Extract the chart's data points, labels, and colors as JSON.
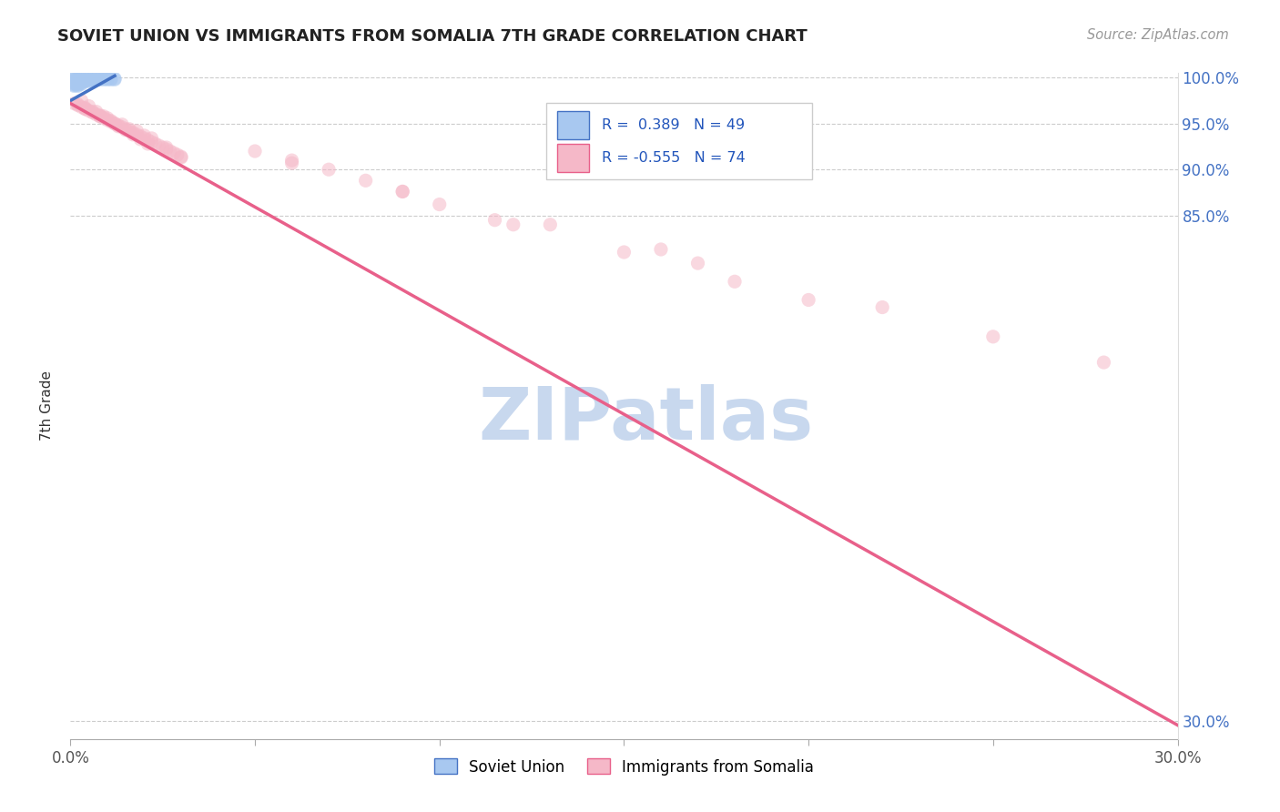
{
  "title": "SOVIET UNION VS IMMIGRANTS FROM SOMALIA 7TH GRADE CORRELATION CHART",
  "source": "Source: ZipAtlas.com",
  "ylabel": "7th Grade",
  "legend_entry1_label": "Soviet Union",
  "legend_entry2_label": "Immigrants from Somalia",
  "r1": 0.389,
  "n1": 49,
  "r2": -0.555,
  "n2": 74,
  "xlim": [
    0.0,
    0.3
  ],
  "ylim": [
    0.28,
    1.005
  ],
  "xticks": [
    0.0,
    0.05,
    0.1,
    0.15,
    0.2,
    0.25,
    0.3
  ],
  "xtick_labels": [
    "0.0%",
    "",
    "",
    "",
    "",
    "",
    "30.0%"
  ],
  "yticks": [
    0.3,
    0.85,
    0.9,
    0.95,
    1.0
  ],
  "ytick_labels": [
    "30.0%",
    "85.0%",
    "90.0%",
    "95.0%",
    "100.0%"
  ],
  "color_blue": "#A8C8F0",
  "color_pink": "#F5B8C8",
  "line_blue": "#4472C4",
  "line_pink": "#E8608A",
  "watermark": "ZIPatlas",
  "watermark_color": "#C8D8EE",
  "blue_line_x": [
    0.0,
    0.012
  ],
  "blue_line_y": [
    0.975,
    1.002
  ],
  "pink_line_x": [
    0.0,
    0.3
  ],
  "pink_line_y": [
    0.972,
    0.295
  ],
  "blue_scatter_x": [
    0.001,
    0.001,
    0.001,
    0.001,
    0.001,
    0.001,
    0.001,
    0.001,
    0.001,
    0.001,
    0.002,
    0.002,
    0.002,
    0.002,
    0.002,
    0.002,
    0.002,
    0.002,
    0.002,
    0.003,
    0.003,
    0.003,
    0.003,
    0.003,
    0.003,
    0.003,
    0.004,
    0.004,
    0.004,
    0.004,
    0.005,
    0.005,
    0.005,
    0.005,
    0.006,
    0.006,
    0.006,
    0.007,
    0.007,
    0.008,
    0.008,
    0.009,
    0.009,
    0.01,
    0.01,
    0.011,
    0.011,
    0.012,
    0.012
  ],
  "blue_scatter_y": [
    0.999,
    0.998,
    0.997,
    0.996,
    0.995,
    0.994,
    0.993,
    0.992,
    1.0,
    0.991,
    0.999,
    0.998,
    0.997,
    0.996,
    0.995,
    0.994,
    0.993,
    0.992,
    0.991,
    0.999,
    0.998,
    0.997,
    0.996,
    0.995,
    0.994,
    0.993,
    0.999,
    0.998,
    0.997,
    0.996,
    0.999,
    0.998,
    0.997,
    0.996,
    0.999,
    0.998,
    0.997,
    0.999,
    0.998,
    0.999,
    0.998,
    0.999,
    0.998,
    0.999,
    0.998,
    0.999,
    0.998,
    0.999,
    0.998
  ],
  "pink_scatter_x": [
    0.001,
    0.002,
    0.003,
    0.004,
    0.005,
    0.006,
    0.007,
    0.008,
    0.009,
    0.01,
    0.011,
    0.012,
    0.013,
    0.014,
    0.015,
    0.016,
    0.017,
    0.018,
    0.019,
    0.02,
    0.021,
    0.022,
    0.023,
    0.024,
    0.025,
    0.026,
    0.027,
    0.028,
    0.029,
    0.03,
    0.003,
    0.005,
    0.007,
    0.009,
    0.011,
    0.013,
    0.015,
    0.017,
    0.019,
    0.021,
    0.002,
    0.004,
    0.006,
    0.008,
    0.01,
    0.014,
    0.018,
    0.022,
    0.026,
    0.03,
    0.004,
    0.008,
    0.012,
    0.016,
    0.02,
    0.05,
    0.06,
    0.07,
    0.08,
    0.09,
    0.1,
    0.12,
    0.15,
    0.18,
    0.2,
    0.06,
    0.09,
    0.13,
    0.16,
    0.22,
    0.17,
    0.25,
    0.28,
    0.115
  ],
  "pink_scatter_y": [
    0.972,
    0.97,
    0.968,
    0.966,
    0.964,
    0.962,
    0.96,
    0.958,
    0.956,
    0.954,
    0.952,
    0.95,
    0.948,
    0.946,
    0.944,
    0.942,
    0.94,
    0.938,
    0.936,
    0.934,
    0.932,
    0.93,
    0.928,
    0.926,
    0.924,
    0.922,
    0.92,
    0.918,
    0.916,
    0.914,
    0.975,
    0.969,
    0.963,
    0.958,
    0.953,
    0.947,
    0.943,
    0.938,
    0.933,
    0.928,
    0.971,
    0.967,
    0.963,
    0.959,
    0.956,
    0.949,
    0.942,
    0.934,
    0.924,
    0.913,
    0.966,
    0.958,
    0.95,
    0.944,
    0.937,
    0.92,
    0.91,
    0.9,
    0.888,
    0.876,
    0.862,
    0.84,
    0.81,
    0.778,
    0.758,
    0.907,
    0.876,
    0.84,
    0.813,
    0.75,
    0.798,
    0.718,
    0.69,
    0.845
  ]
}
